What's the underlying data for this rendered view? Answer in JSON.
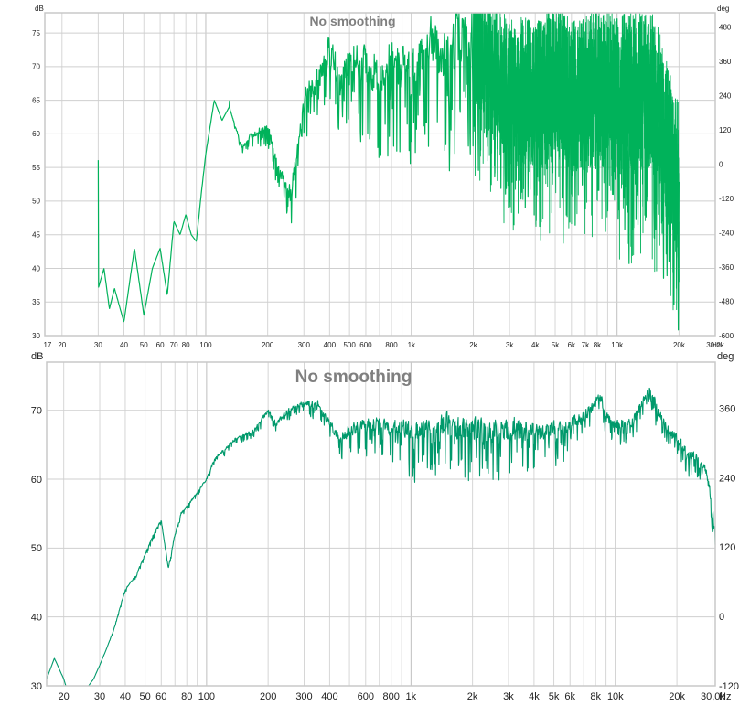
{
  "chart_data": [
    {
      "type": "line",
      "title": "No smoothing",
      "left_unit": "dB",
      "right_unit": "deg",
      "x_unit": "Hz",
      "x_scale": "log",
      "xlim": [
        16.5,
        30000
      ],
      "ylim": [
        30,
        78
      ],
      "y2lim": [
        -600,
        530
      ],
      "y_ticks": [
        30,
        35,
        40,
        45,
        50,
        55,
        60,
        65,
        70,
        75
      ],
      "y2_ticks": [
        -600,
        -480,
        -360,
        -240,
        -120,
        0,
        120,
        240,
        360,
        480
      ],
      "x_ticks": [
        {
          "v": 17,
          "t": "17"
        },
        {
          "v": 20,
          "t": "20"
        },
        {
          "v": 30,
          "t": "30"
        },
        {
          "v": 40,
          "t": "40"
        },
        {
          "v": 50,
          "t": "50"
        },
        {
          "v": 60,
          "t": "60"
        },
        {
          "v": 70,
          "t": "70"
        },
        {
          "v": 80,
          "t": "80"
        },
        {
          "v": 100,
          "t": "100"
        },
        {
          "v": 200,
          "t": "200"
        },
        {
          "v": 300,
          "t": "300"
        },
        {
          "v": 400,
          "t": "400"
        },
        {
          "v": 500,
          "t": "500"
        },
        {
          "v": 600,
          "t": "600"
        },
        {
          "v": 800,
          "t": "800"
        },
        {
          "v": 1000,
          "t": "1k"
        },
        {
          "v": 2000,
          "t": "2k"
        },
        {
          "v": 3000,
          "t": "3k"
        },
        {
          "v": 4000,
          "t": "4k"
        },
        {
          "v": 5000,
          "t": "5k"
        },
        {
          "v": 6000,
          "t": "6k"
        },
        {
          "v": 7000,
          "t": "7k"
        },
        {
          "v": 8000,
          "t": "8k"
        },
        {
          "v": 10000,
          "t": "10k"
        },
        {
          "v": 20000,
          "t": "20k"
        },
        {
          "v": 30000,
          "t": "30.0k"
        }
      ],
      "series": [
        {
          "color": "#00b25a",
          "x": [
            30,
            32,
            34,
            36,
            40,
            45,
            50,
            55,
            60,
            65,
            70,
            75,
            80,
            85,
            90,
            95,
            100,
            110,
            120,
            130,
            150,
            170,
            200,
            230,
            260,
            300,
            350,
            400,
            450,
            500,
            600,
            700,
            800,
            1000,
            1200,
            1500,
            1700,
            2000,
            2200,
            2500,
            3000,
            3500,
            4000,
            5000,
            6000,
            7000,
            8000,
            10000,
            12000,
            14000,
            16000,
            18000,
            20000
          ],
          "y": [
            37,
            40,
            34,
            37,
            32,
            43,
            33,
            40,
            43,
            36,
            47,
            45,
            48,
            45,
            44,
            51,
            57,
            65,
            62,
            64,
            58,
            60,
            61,
            54,
            51,
            65,
            68,
            73,
            68,
            72,
            70,
            69,
            71,
            70,
            73,
            72,
            74,
            76,
            72,
            70,
            67,
            67,
            66,
            68,
            66,
            66,
            67,
            66,
            66,
            67,
            64,
            57,
            52
          ],
          "noise_db": [
            0,
            0,
            0,
            0,
            0,
            0,
            0,
            0,
            0,
            0,
            0,
            0,
            0,
            0,
            0,
            0,
            0,
            0,
            0,
            0,
            1,
            2,
            3,
            4,
            5,
            6,
            7,
            8,
            9,
            10,
            12,
            14,
            14,
            14,
            15,
            16,
            17,
            18,
            18,
            18,
            18,
            19,
            20,
            21,
            21,
            21,
            21,
            22,
            22,
            22,
            22,
            22,
            22
          ]
        }
      ]
    },
    {
      "type": "line",
      "title": "No smoothing",
      "left_unit": "dB",
      "right_unit": "deg",
      "x_unit": "Hz",
      "x_scale": "log",
      "xlim": [
        16.5,
        30800
      ],
      "ylim": [
        30,
        77
      ],
      "y2lim": [
        -120,
        440
      ],
      "y_ticks": [
        30,
        40,
        50,
        60,
        70
      ],
      "y2_ticks": [
        -120,
        0,
        120,
        240,
        360
      ],
      "x_ticks": [
        {
          "v": 20,
          "t": "20"
        },
        {
          "v": 30,
          "t": "30"
        },
        {
          "v": 40,
          "t": "40"
        },
        {
          "v": 50,
          "t": "50"
        },
        {
          "v": 60,
          "t": "60"
        },
        {
          "v": 80,
          "t": "80"
        },
        {
          "v": 100,
          "t": "100"
        },
        {
          "v": 200,
          "t": "200"
        },
        {
          "v": 300,
          "t": "300"
        },
        {
          "v": 400,
          "t": "400"
        },
        {
          "v": 600,
          "t": "600"
        },
        {
          "v": 800,
          "t": "800"
        },
        {
          "v": 1000,
          "t": "1k"
        },
        {
          "v": 2000,
          "t": "2k"
        },
        {
          "v": 3000,
          "t": "3k"
        },
        {
          "v": 4000,
          "t": "4k"
        },
        {
          "v": 5000,
          "t": "5k"
        },
        {
          "v": 6000,
          "t": "6k"
        },
        {
          "v": 8000,
          "t": "8k"
        },
        {
          "v": 10000,
          "t": "10k"
        },
        {
          "v": 20000,
          "t": "20k"
        },
        {
          "v": 30000,
          "t": "30,0k"
        }
      ],
      "series": [
        {
          "color": "#00996b",
          "x": [
            16.5,
            18,
            20,
            22,
            25,
            28,
            30,
            32,
            35,
            40,
            45,
            50,
            55,
            60,
            65,
            70,
            75,
            80,
            90,
            100,
            110,
            120,
            140,
            170,
            200,
            220,
            250,
            300,
            350,
            400,
            450,
            500,
            600,
            700,
            800,
            900,
            1000,
            1200,
            1500,
            2000,
            2500,
            3000,
            4000,
            5000,
            6000,
            7000,
            8000,
            8500,
            9000,
            10000,
            11000,
            12000,
            13000,
            14000,
            15000,
            16000,
            18000,
            20000,
            22000,
            25000,
            28000,
            30000,
            30800
          ],
          "y": [
            31,
            34,
            31,
            27,
            29,
            31,
            33,
            35,
            38,
            44,
            46,
            49,
            52,
            54,
            47,
            52,
            55,
            56,
            58,
            60,
            63,
            64,
            66,
            67,
            70,
            68,
            70,
            71,
            71,
            68,
            66,
            67,
            68,
            68,
            67,
            68,
            67,
            67,
            68,
            67,
            67,
            67,
            67,
            67,
            68,
            69,
            71,
            72,
            69,
            68,
            68,
            68,
            70,
            72,
            73,
            70,
            67,
            66,
            64,
            63,
            61,
            55,
            51
          ],
          "noise_db": [
            0,
            0,
            0,
            0,
            0,
            0,
            0,
            0,
            0.3,
            0.4,
            0.5,
            0.6,
            0.6,
            0.6,
            0.6,
            0.6,
            0.6,
            0.6,
            0.6,
            0.7,
            0.8,
            0.9,
            1.0,
            1.1,
            1.2,
            1.3,
            1.5,
            1.7,
            2.0,
            2.5,
            3.0,
            3.5,
            4.0,
            4.5,
            5.0,
            5.5,
            6.0,
            6.5,
            7.0,
            7.5,
            7.5,
            7.0,
            6.0,
            5.0,
            4.0,
            3.5,
            3.0,
            3.0,
            3.0,
            3.0,
            3.0,
            3.0,
            3.0,
            3.0,
            3.0,
            3.0,
            3.0,
            3.0,
            3.0,
            3.0,
            3.0,
            3.0,
            3.0
          ]
        }
      ]
    }
  ]
}
